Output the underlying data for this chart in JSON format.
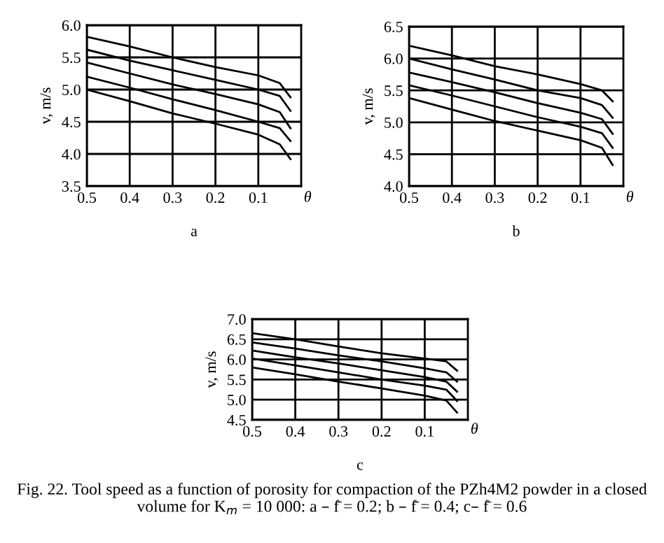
{
  "chart_data": [
    {
      "type": "line",
      "title": "a",
      "xlabel": "θ",
      "ylabel": "v, m/s",
      "x": [
        0.5,
        0.4,
        0.3,
        0.2,
        0.1,
        0.05,
        0.025
      ],
      "xlim": [
        0.5,
        0
      ],
      "xticks": [
        0.5,
        0.4,
        0.3,
        0.2,
        0.1
      ],
      "ylim": [
        3.5,
        6.0
      ],
      "yticks": [
        3.5,
        {
          "value": 4,
          "label": "4.0"
        },
        4.5,
        {
          "value": 5,
          "label": "5.0"
        },
        5.5,
        {
          "value": 6,
          "label": "6.0"
        }
      ],
      "grid": true,
      "line_style": "solid",
      "series": [
        {
          "color": "#000000",
          "values": [
            5.82,
            5.67,
            5.5,
            5.35,
            5.22,
            5.1,
            4.88
          ]
        },
        {
          "color": "#000000",
          "values": [
            5.62,
            5.45,
            5.3,
            5.15,
            5.0,
            4.9,
            4.67
          ]
        },
        {
          "color": "#000000",
          "values": [
            5.42,
            5.25,
            5.08,
            4.93,
            4.77,
            4.65,
            4.4
          ]
        },
        {
          "color": "#000000",
          "values": [
            5.2,
            5.03,
            4.85,
            4.68,
            4.5,
            4.4,
            4.2
          ]
        },
        {
          "color": "#000000",
          "values": [
            5.0,
            4.82,
            4.63,
            4.47,
            4.3,
            4.15,
            3.92
          ]
        }
      ]
    },
    {
      "type": "line",
      "title": "b",
      "xlabel": "θ",
      "ylabel": "v, m/s",
      "x": [
        0.5,
        0.4,
        0.3,
        0.2,
        0.1,
        0.05,
        0.025
      ],
      "xlim": [
        0.5,
        0
      ],
      "xticks": [
        0.5,
        0.4,
        0.3,
        0.2,
        0.1
      ],
      "ylim": [
        4.0,
        6.5
      ],
      "yticks": [
        {
          "value": 4,
          "label": "4.0"
        },
        4.5,
        {
          "value": 5,
          "label": "5.0"
        },
        5.5,
        {
          "value": 6,
          "label": "6.0"
        },
        6.5
      ],
      "grid": true,
      "line_style": "solid",
      "series": [
        {
          "color": "#000000",
          "values": [
            6.2,
            6.05,
            5.88,
            5.75,
            5.6,
            5.5,
            5.33
          ]
        },
        {
          "color": "#000000",
          "values": [
            6.0,
            5.83,
            5.67,
            5.5,
            5.38,
            5.27,
            5.07
          ]
        },
        {
          "color": "#000000",
          "values": [
            5.78,
            5.63,
            5.47,
            5.3,
            5.15,
            5.05,
            4.82
          ]
        },
        {
          "color": "#000000",
          "values": [
            5.58,
            5.42,
            5.25,
            5.08,
            4.93,
            4.83,
            4.6
          ]
        },
        {
          "color": "#000000",
          "values": [
            5.38,
            5.2,
            5.02,
            4.87,
            4.72,
            4.6,
            4.33
          ]
        }
      ]
    },
    {
      "type": "line",
      "title": "c",
      "xlabel": "θ",
      "ylabel": "v, m/s",
      "x": [
        0.5,
        0.4,
        0.3,
        0.2,
        0.1,
        0.05,
        0.025
      ],
      "xlim": [
        0.5,
        0
      ],
      "xticks": [
        0.5,
        0.4,
        0.3,
        0.2,
        0.1
      ],
      "ylim": [
        4.5,
        7.0
      ],
      "yticks": [
        4.5,
        {
          "value": 5,
          "label": "5.0"
        },
        5.5,
        {
          "value": 6,
          "label": "6.0"
        },
        6.5,
        {
          "value": 7,
          "label": "7.0"
        }
      ],
      "grid": true,
      "line_style": "solid",
      "annotations": [
        "Fig. 22. Tool speed as a function of porosity for compaction of the PZh4M2 powder in a closed volume for K$_{m}$ = 10 000: a – f̄ = 0.2; b – f̄ = 0.4; c– f̄ = 0.6"
      ],
      "series": [
        {
          "color": "#000000",
          "values": [
            6.65,
            6.5,
            6.32,
            6.15,
            6.02,
            5.95,
            5.72
          ]
        },
        {
          "color": "#000000",
          "values": [
            6.42,
            6.27,
            6.1,
            5.95,
            5.78,
            5.68,
            5.45
          ]
        },
        {
          "color": "#000000",
          "values": [
            6.22,
            6.05,
            5.9,
            5.73,
            5.56,
            5.45,
            5.2
          ]
        },
        {
          "color": "#000000",
          "values": [
            6.02,
            5.85,
            5.68,
            5.5,
            5.35,
            5.25,
            4.97
          ]
        },
        {
          "color": "#000000",
          "values": [
            5.8,
            5.63,
            5.45,
            5.28,
            5.1,
            4.98,
            4.68
          ]
        }
      ]
    }
  ]
}
